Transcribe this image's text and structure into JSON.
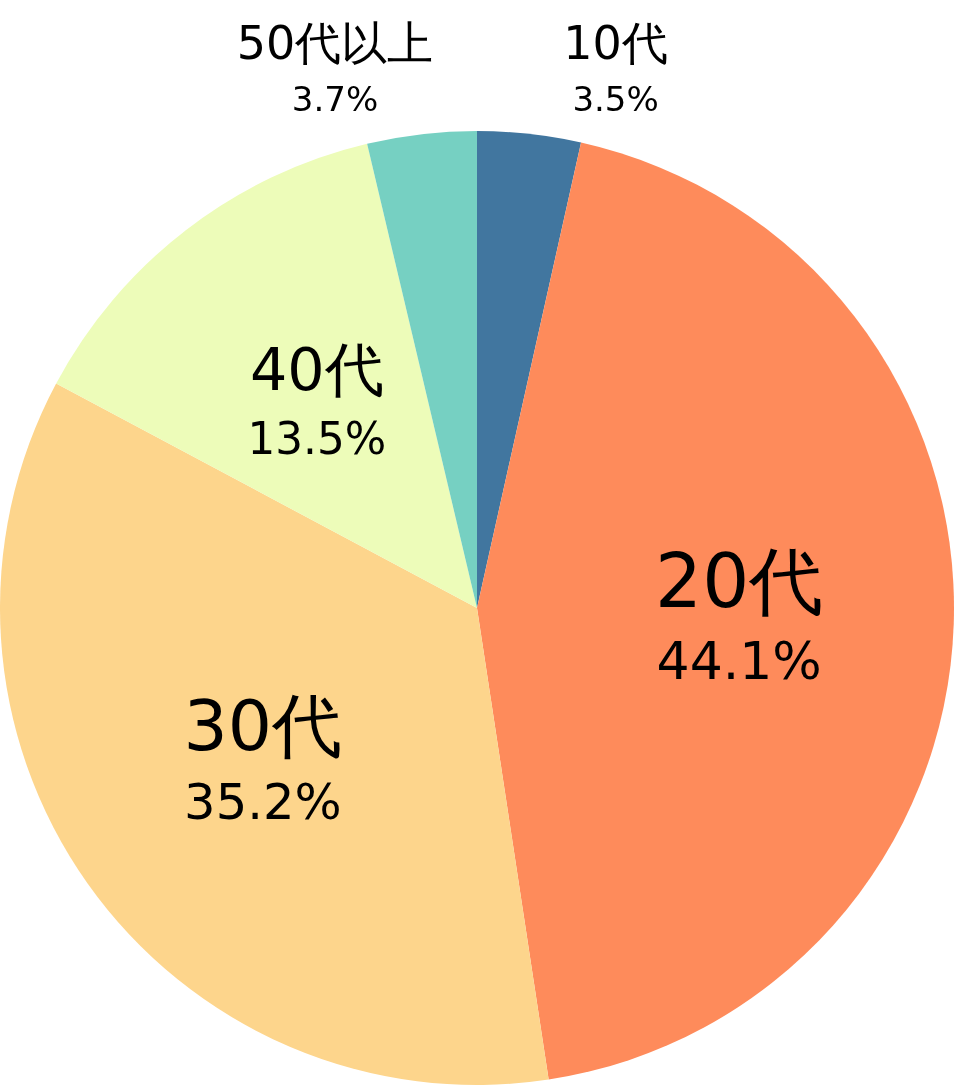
{
  "chart_data": {
    "type": "pie",
    "categories": [
      "10代",
      "20代",
      "30代",
      "40代",
      "50代以上"
    ],
    "values": [
      3.5,
      44.1,
      35.2,
      13.5,
      3.7
    ],
    "value_labels": [
      "3.5%",
      "44.1%",
      "35.2%",
      "13.5%",
      "3.7%"
    ],
    "colors": [
      "#41769f",
      "#fe8b5b",
      "#fdd58c",
      "#edfcb9",
      "#76d0c2"
    ]
  }
}
